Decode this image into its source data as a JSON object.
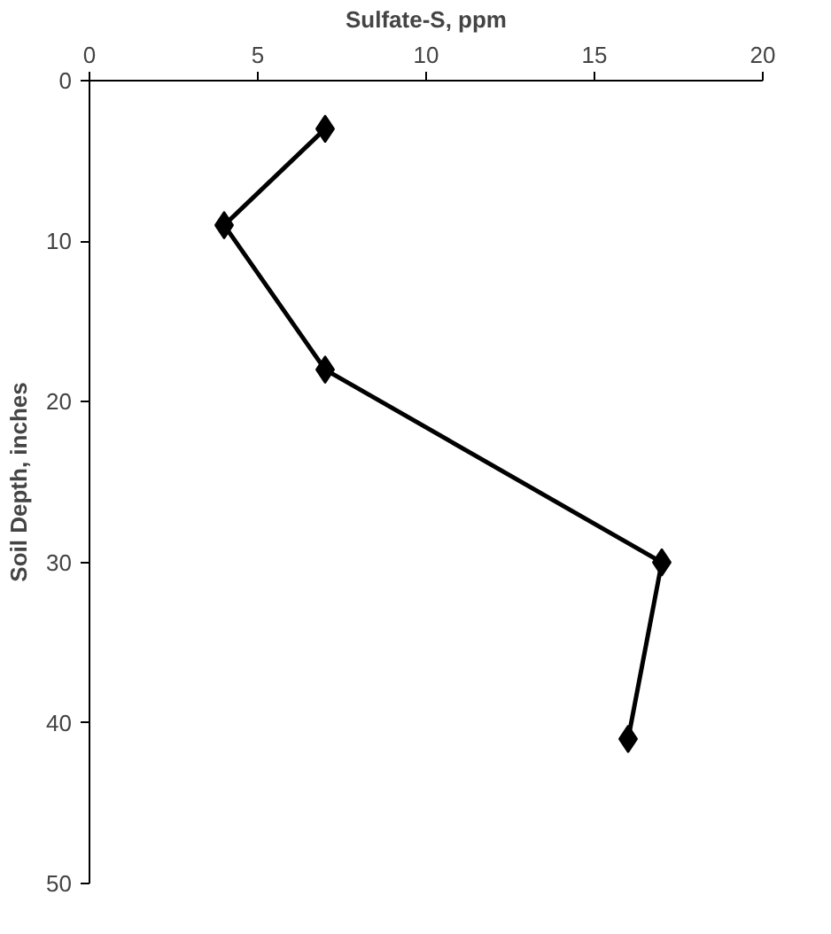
{
  "chart_data": {
    "type": "line",
    "xlabel": "Sulfate-S, ppm",
    "ylabel": "Soil Depth, inches",
    "x": [
      7,
      4,
      7,
      17,
      16
    ],
    "series": [
      {
        "color": "#000000",
        "values": [
          3,
          9,
          18,
          30,
          41
        ]
      }
    ],
    "xlim": [
      0,
      20
    ],
    "xticks": [
      0,
      5,
      10,
      15,
      20
    ],
    "ylim": [
      50,
      0
    ],
    "yticks": [
      0,
      10,
      20,
      30,
      40,
      50
    ],
    "marker": "diamond",
    "line_style": "solid",
    "grid": false
  }
}
